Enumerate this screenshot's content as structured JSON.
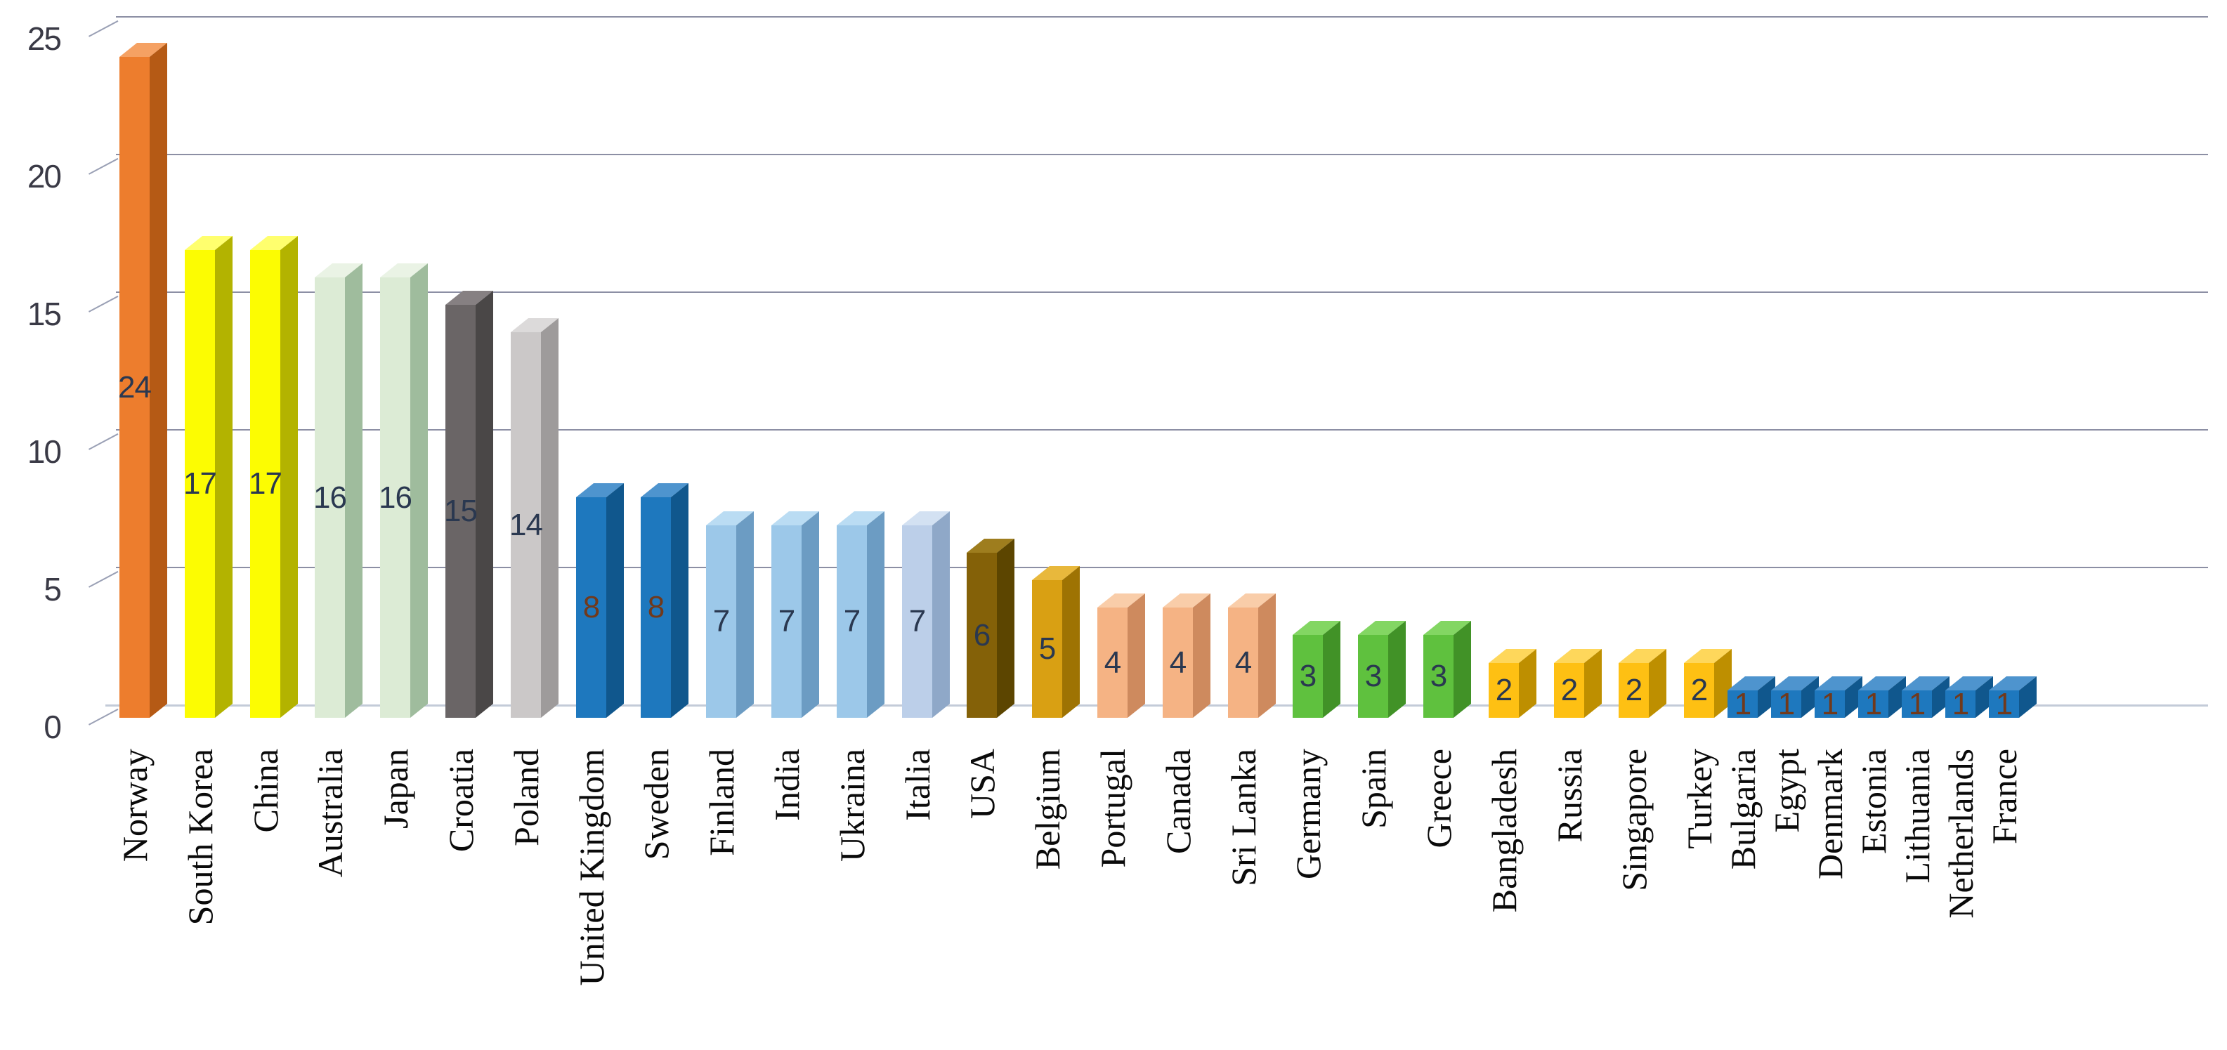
{
  "chart_data": {
    "type": "bar",
    "title": "",
    "xlabel": "",
    "ylabel": "",
    "ylim": [
      0,
      25
    ],
    "ytick_interval": 5,
    "y_ticks": [
      "0",
      "5",
      "10",
      "15",
      "20",
      "25"
    ],
    "grid": true,
    "legend": "none",
    "style": "3d-column",
    "categories": [
      "Norway",
      "South Korea",
      "China",
      "Australia",
      "Japan",
      "Croatia",
      "Poland",
      "United Kingdom",
      "Sweden",
      "Finland",
      "India",
      "Ukraina",
      "Italia",
      "USA",
      "Belgium",
      "Portugal",
      "Canada",
      "Sri Lanka",
      "Germany",
      "Spain",
      "Greece",
      "Bangladesh",
      "Russia",
      "Singapore",
      "Turkey",
      "Bulgaria",
      "Egypt",
      "Denmark",
      "Estonia",
      "Lithuania",
      "Netherlands",
      "France"
    ],
    "values": [
      24,
      17,
      17,
      16,
      16,
      15,
      14,
      8,
      8,
      7,
      7,
      7,
      7,
      6,
      5,
      4,
      4,
      4,
      3,
      3,
      3,
      2,
      2,
      2,
      2,
      1,
      1,
      1,
      1,
      1,
      1,
      1
    ],
    "bar_color_keys": [
      "orange",
      "yellow",
      "yellow",
      "palegreen",
      "palegreen",
      "darkgray",
      "lightgray",
      "darkblue",
      "darkblue",
      "skyblue",
      "skyblue",
      "skyblue",
      "paleblue",
      "olive",
      "gold",
      "salmon",
      "salmon",
      "salmon",
      "green",
      "green",
      "green",
      "amber",
      "amber",
      "amber",
      "amber",
      "darkblue",
      "darkblue",
      "darkblue",
      "darkblue",
      "darkblue",
      "darkblue",
      "darkblue"
    ],
    "palette": {
      "orange": {
        "front": "#ED7D2D",
        "side": "#B55A15",
        "top": "#F5A163"
      },
      "yellow": {
        "front": "#FCFC02",
        "side": "#B3B300",
        "top": "#FFFF6E"
      },
      "palegreen": {
        "front": "#DCEBD5",
        "side": "#9FBC9D",
        "top": "#EAF3E5"
      },
      "darkgray": {
        "front": "#6A6566",
        "side": "#4A4747",
        "top": "#868082"
      },
      "lightgray": {
        "front": "#CBC8C8",
        "side": "#9E9B9B",
        "top": "#DCDADA"
      },
      "darkblue": {
        "front": "#1E78BE",
        "side": "#10578D",
        "top": "#4E94CE"
      },
      "skyblue": {
        "front": "#9CC8E9",
        "side": "#6C9CC3",
        "top": "#BADCF3"
      },
      "paleblue": {
        "front": "#BCCFE9",
        "side": "#8FA8C8",
        "top": "#D3E1F2"
      },
      "olive": {
        "front": "#846108",
        "side": "#5C4500",
        "top": "#9E7D1E"
      },
      "gold": {
        "front": "#D9A013",
        "side": "#9E7303",
        "top": "#E8B83C"
      },
      "salmon": {
        "front": "#F5B384",
        "side": "#CE8A5E",
        "top": "#F9CDA9"
      },
      "green": {
        "front": "#5FC13E",
        "side": "#419227",
        "top": "#83D663"
      },
      "amber": {
        "front": "#FEC013",
        "side": "#BE8F00",
        "top": "#FED75B"
      }
    },
    "value_label_colors": {
      "default": "#2A3850",
      "brown": "#71391B"
    },
    "brown_label_indices": [
      7,
      8,
      25,
      26,
      27,
      28,
      29,
      30,
      31
    ]
  },
  "colors": {
    "gridline": "#8C8FA4",
    "baseline": "#C3CBD8",
    "tick": "#9AA0B5",
    "axis_text": "#3A3A46",
    "category_text": "#0A0A0A",
    "background": "#FFFFFF"
  }
}
